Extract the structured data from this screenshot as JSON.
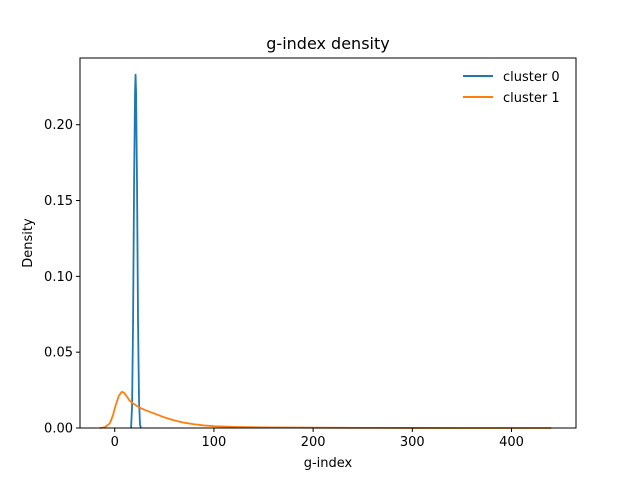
{
  "chart_data": {
    "type": "line",
    "title": "g-index density",
    "xlabel": "g-index",
    "ylabel": "Density",
    "xlim": [
      -35,
      465
    ],
    "ylim": [
      0,
      0.244
    ],
    "xticks": [
      0,
      100,
      200,
      300,
      400
    ],
    "xtick_labels": [
      "0",
      "100",
      "200",
      "300",
      "400"
    ],
    "yticks": [
      0.0,
      0.05,
      0.1,
      0.15,
      0.2
    ],
    "ytick_labels": [
      "0.00",
      "0.05",
      "0.10",
      "0.15",
      "0.20"
    ],
    "grid": false,
    "legend_position": "top-right",
    "series": [
      {
        "name": "cluster 0",
        "color": "#1f77b4",
        "x": [
          16.5,
          17.5,
          18.5,
          19.5,
          20.5,
          21.0,
          21.5,
          22.5,
          23.5,
          24.5,
          25.5,
          26.5
        ],
        "y": [
          0.0,
          0.015,
          0.07,
          0.16,
          0.222,
          0.233,
          0.222,
          0.16,
          0.07,
          0.018,
          0.002,
          0.0
        ]
      },
      {
        "name": "cluster 1",
        "color": "#ff7f0e",
        "x": [
          -15,
          -10,
          -5,
          -2,
          1,
          4,
          7,
          9,
          12,
          15,
          20,
          25,
          30,
          40,
          50,
          60,
          70,
          80,
          90,
          100,
          120,
          150,
          200,
          250,
          300,
          350,
          400,
          440
        ],
        "y": [
          0.0,
          0.0005,
          0.003,
          0.008,
          0.015,
          0.021,
          0.0238,
          0.0235,
          0.021,
          0.018,
          0.0155,
          0.0135,
          0.012,
          0.0095,
          0.007,
          0.005,
          0.0035,
          0.0025,
          0.0017,
          0.0012,
          0.0007,
          0.0004,
          0.0002,
          0.0001,
          5e-05,
          2e-05,
          1e-05,
          0.0
        ]
      }
    ]
  }
}
